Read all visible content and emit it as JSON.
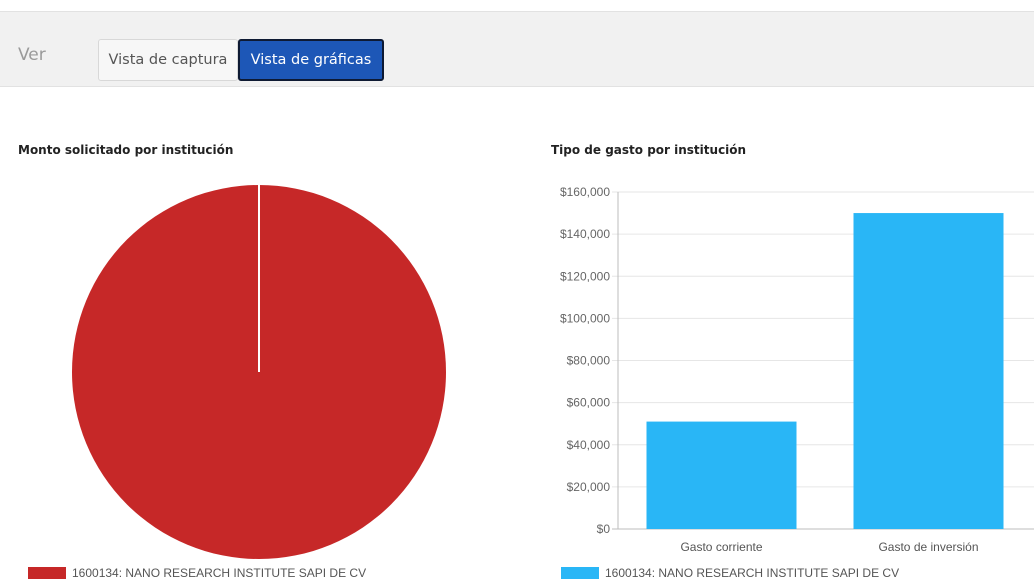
{
  "toolbar": {
    "ver_label": "Ver",
    "tabs": [
      {
        "label": "Vista de captura",
        "active": false
      },
      {
        "label": "Vista de gráficas",
        "active": true
      }
    ],
    "active_color": "#1d57b7"
  },
  "chart_data": [
    {
      "type": "pie",
      "title": "Monto solicitado por institución",
      "categories": [
        "1600134: NANO RESEARCH INSTITUTE SAPI DE CV"
      ],
      "values": [
        100
      ],
      "colors": [
        "#c62828"
      ],
      "legend": "bottom"
    },
    {
      "type": "bar",
      "title": "Tipo de gasto por institución",
      "categories": [
        "Gasto corriente",
        "Gasto de inversión"
      ],
      "series": [
        {
          "name": "1600134: NANO RESEARCH INSTITUTE SAPI DE CV",
          "values": [
            51000,
            150000
          ],
          "color": "#29b6f6"
        }
      ],
      "yticks": [
        "$0",
        "$20,000",
        "$40,000",
        "$60,000",
        "$80,000",
        "$100,000",
        "$120,000",
        "$140,000",
        "$160,000"
      ],
      "ylim": [
        0,
        160000
      ],
      "grid": true,
      "legend": "bottom"
    }
  ]
}
